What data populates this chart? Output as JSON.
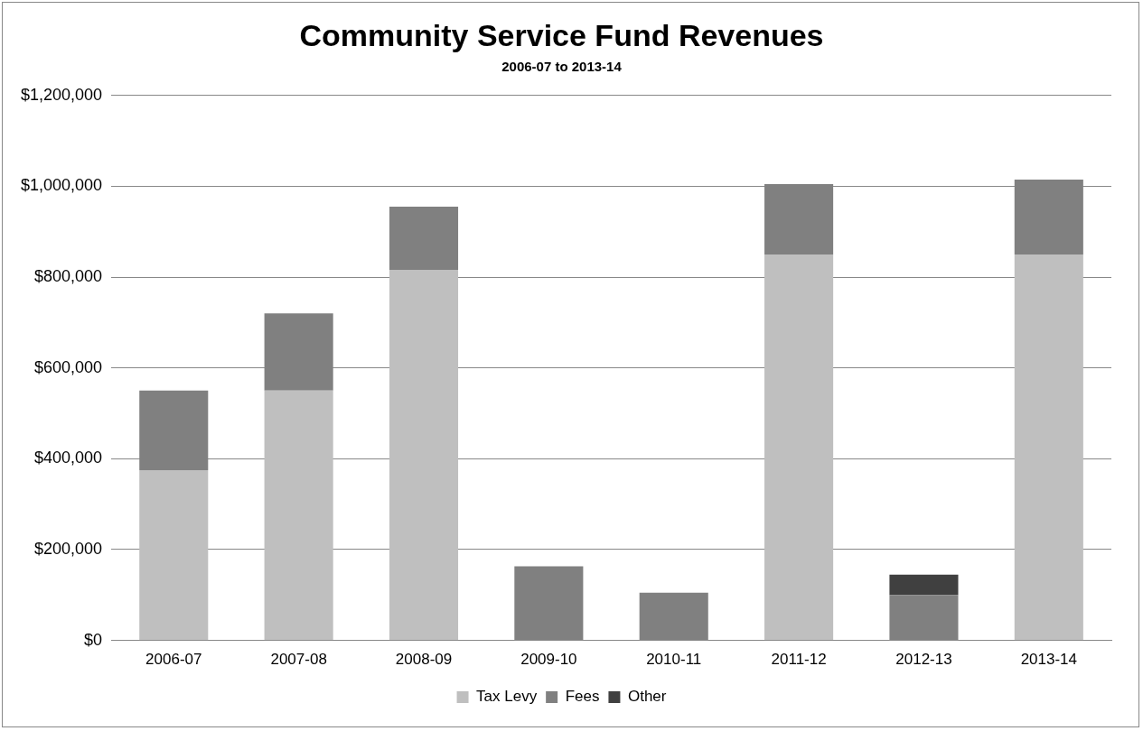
{
  "chart_data": {
    "type": "bar",
    "title": "Community Service Fund Revenues",
    "subtitle": "2006-07 to 2013-14",
    "categories": [
      "2006-07",
      "2007-08",
      "2008-09",
      "2009-10",
      "2010-11",
      "2011-12",
      "2012-13",
      "2013-14"
    ],
    "stacked": true,
    "series": [
      {
        "name": "Tax Levy",
        "color": "#bfbfbf",
        "values": [
          375000,
          550000,
          815000,
          null,
          null,
          850000,
          null,
          850000
        ]
      },
      {
        "name": "Fees",
        "color": "#808080",
        "values": [
          175000,
          170000,
          140000,
          163000,
          105000,
          155000,
          100000,
          165000
        ]
      },
      {
        "name": "Other",
        "color": "#404040",
        "values": [
          null,
          null,
          null,
          null,
          null,
          null,
          45000,
          null
        ]
      }
    ],
    "ylim": [
      0,
      1200000
    ],
    "yticks": [
      {
        "value": 0,
        "label": "$0"
      },
      {
        "value": 200000,
        "label": "$200,000"
      },
      {
        "value": 400000,
        "label": "$400,000"
      },
      {
        "value": 600000,
        "label": "$600,000"
      },
      {
        "value": 800000,
        "label": "$800,000"
      },
      {
        "value": 1000000,
        "label": "$1,000,000"
      },
      {
        "value": 1200000,
        "label": "$1,200,000"
      }
    ],
    "grid": "y",
    "legend": "bottom"
  }
}
